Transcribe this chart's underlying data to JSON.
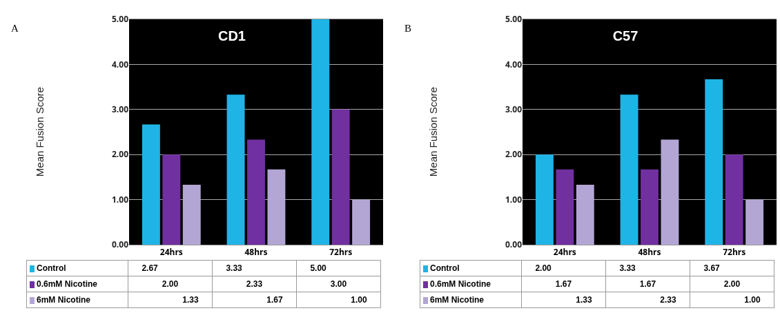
{
  "chart_data": [
    {
      "type": "bar",
      "title": "CD1",
      "ylabel": "Mean Fusion Score",
      "annotations": [
        "A"
      ],
      "categories": [
        "24hrs",
        "48hrs",
        "72hrs"
      ],
      "series": [
        {
          "name": "Control",
          "color": "#1fb4e6",
          "values": [
            2.67,
            3.33,
            5.0
          ],
          "value_labels": [
            "2.67",
            "3.33",
            "5.00"
          ]
        },
        {
          "name": "0.6mM Nicotine",
          "color": "#7030a0",
          "values": [
            2.0,
            2.33,
            3.0
          ],
          "value_labels": [
            "2.00",
            "2.33",
            "3.00"
          ]
        },
        {
          "name": "6mM Nicotine",
          "color": "#b3a6d4",
          "values": [
            1.33,
            1.67,
            1.0
          ],
          "value_labels": [
            "1.33",
            "1.67",
            "1.00"
          ]
        }
      ],
      "ylim": [
        0,
        5
      ],
      "yticks": [
        {
          "value": 0,
          "label": "0.00"
        },
        {
          "value": 1,
          "label": "1.00"
        },
        {
          "value": 2,
          "label": "2.00"
        },
        {
          "value": 3,
          "label": "3.00"
        },
        {
          "value": 4,
          "label": "4.00"
        },
        {
          "value": 5,
          "label": "5.00"
        }
      ],
      "grid": "y",
      "legend": "bottom"
    },
    {
      "type": "bar",
      "title": "C57",
      "ylabel": "Mean Fusion Score",
      "annotations": [
        "B"
      ],
      "categories": [
        "24hrs",
        "48hrs",
        "72hrs"
      ],
      "series": [
        {
          "name": "Control",
          "color": "#1fb4e6",
          "values": [
            2.0,
            3.33,
            3.67
          ],
          "value_labels": [
            "2.00",
            "3.33",
            "3.67"
          ]
        },
        {
          "name": "0.6mM Nicotine",
          "color": "#7030a0",
          "values": [
            1.67,
            1.67,
            2.0
          ],
          "value_labels": [
            "1.67",
            "1.67",
            "2.00"
          ]
        },
        {
          "name": "6mM Nicotine",
          "color": "#b3a6d4",
          "values": [
            1.33,
            2.33,
            1.0
          ],
          "value_labels": [
            "1.33",
            "2.33",
            "1.00"
          ]
        }
      ],
      "ylim": [
        0,
        5
      ],
      "yticks": [
        {
          "value": 0,
          "label": "0.00"
        },
        {
          "value": 1,
          "label": "1.00"
        },
        {
          "value": 2,
          "label": "2.00"
        },
        {
          "value": 3,
          "label": "3.00"
        },
        {
          "value": 4,
          "label": "4.00"
        },
        {
          "value": 5,
          "label": "5.00"
        }
      ],
      "grid": "y",
      "legend": "bottom"
    }
  ]
}
